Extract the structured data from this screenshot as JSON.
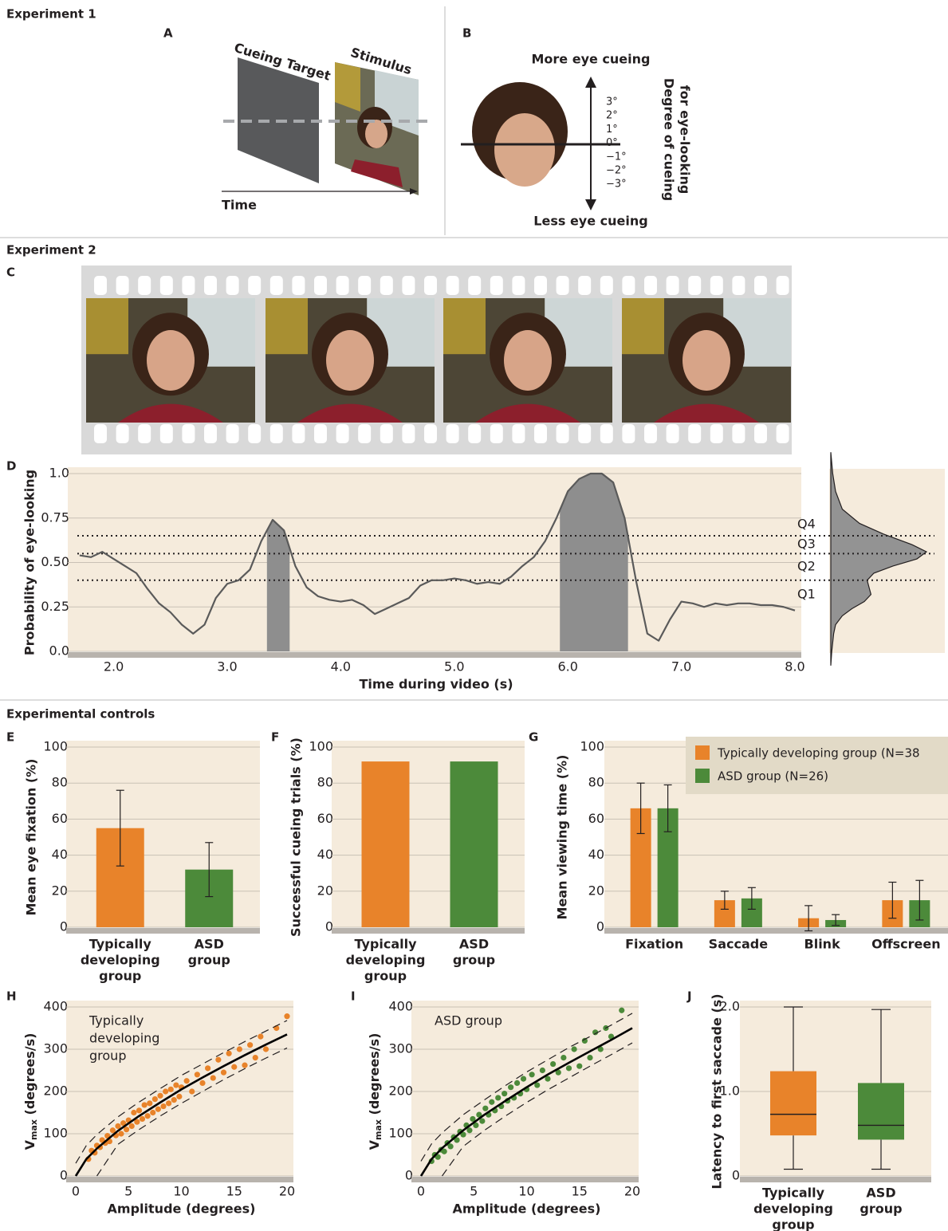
{
  "headings": [
    "Experiment 1",
    "Experiment 2",
    "Experimental controls"
  ],
  "panel_a": {
    "label": "A",
    "target": "Cueing Target",
    "stimulus": "Stimulus",
    "time": "Time"
  },
  "panel_b": {
    "label": "B",
    "top": "More eye cueing",
    "bottom": "Less eye cueing",
    "degrees": [
      "3°",
      "2°",
      "1°",
      "0°",
      "−1°",
      "−2°",
      "−3°"
    ],
    "axis_label": [
      "Degree of cueing",
      "for eye-looking"
    ]
  },
  "panel_c": {
    "label": "C"
  },
  "chart_data": [
    {
      "type": "line",
      "panel_label": "D",
      "ylabel": "Probability of eye-looking",
      "xlabel": "Time during video (s)",
      "xlim": [
        1.68,
        8.0
      ],
      "xticks": [
        {
          "value": 2,
          "label": "2.0"
        },
        {
          "value": 3,
          "label": "3.0"
        },
        {
          "value": 4,
          "label": "4.0"
        },
        {
          "value": 5,
          "label": "5.0"
        },
        {
          "value": 6,
          "label": "6.0"
        },
        {
          "value": 7,
          "label": "7.0"
        },
        {
          "value": 8,
          "label": "8.0"
        }
      ],
      "ylim": [
        0,
        1.0
      ],
      "yticks": [
        {
          "value": 0,
          "label": "0.0"
        },
        0.25,
        {
          "value": 0.5,
          "label": "0.50"
        },
        0.75,
        {
          "value": 1,
          "label": "1.0"
        }
      ],
      "grid": true,
      "color": "#5a5a5a",
      "highlight_color": "#8e8e8e",
      "x": [
        1.7,
        1.8,
        1.9,
        2.0,
        2.1,
        2.2,
        2.3,
        2.4,
        2.5,
        2.6,
        2.7,
        2.8,
        2.9,
        3.0,
        3.1,
        3.2,
        3.3,
        3.4,
        3.5,
        3.6,
        3.7,
        3.8,
        3.9,
        4.0,
        4.1,
        4.2,
        4.3,
        4.4,
        4.5,
        4.6,
        4.7,
        4.8,
        4.9,
        5.0,
        5.1,
        5.2,
        5.3,
        5.4,
        5.5,
        5.6,
        5.7,
        5.8,
        5.9,
        6.0,
        6.1,
        6.2,
        6.3,
        6.4,
        6.5,
        6.6,
        6.7,
        6.8,
        6.9,
        7.0,
        7.1,
        7.2,
        7.3,
        7.4,
        7.5,
        7.6,
        7.7,
        7.8,
        7.9,
        8.0
      ],
      "values": [
        0.54,
        0.53,
        0.56,
        0.52,
        0.48,
        0.44,
        0.35,
        0.27,
        0.22,
        0.15,
        0.1,
        0.15,
        0.3,
        0.38,
        0.4,
        0.46,
        0.62,
        0.74,
        0.68,
        0.48,
        0.36,
        0.31,
        0.29,
        0.28,
        0.29,
        0.26,
        0.21,
        0.24,
        0.27,
        0.3,
        0.37,
        0.4,
        0.4,
        0.41,
        0.4,
        0.38,
        0.39,
        0.38,
        0.42,
        0.48,
        0.53,
        0.62,
        0.75,
        0.9,
        0.97,
        1.0,
        1.0,
        0.95,
        0.75,
        0.4,
        0.1,
        0.06,
        0.18,
        0.28,
        0.27,
        0.25,
        0.27,
        0.26,
        0.27,
        0.27,
        0.26,
        0.26,
        0.25,
        0.23
      ],
      "highlights": [
        [
          3.35,
          3.55
        ],
        [
          5.93,
          6.53
        ]
      ],
      "quartile_lines": [
        0.4,
        0.55,
        0.65
      ],
      "quartile_labels": [
        "Q1",
        "Q2",
        "Q3",
        "Q4"
      ],
      "distribution": {
        "y": [
          1.12,
          1.0,
          0.9,
          0.8,
          0.72,
          0.66,
          0.6,
          0.56,
          0.52,
          0.48,
          0.44,
          0.4,
          0.36,
          0.32,
          0.28,
          0.24,
          0.2,
          0.15,
          0.1,
          0.0,
          -0.08
        ],
        "density": [
          0,
          0.02,
          0.05,
          0.12,
          0.3,
          0.55,
          0.85,
          1.0,
          0.9,
          0.65,
          0.45,
          0.38,
          0.4,
          0.42,
          0.35,
          0.22,
          0.12,
          0.05,
          0.03,
          0.01,
          0
        ]
      }
    },
    {
      "type": "bar",
      "panel_label": "E",
      "ylabel": "Mean eye fixation (%)",
      "categories": [
        [
          "Typically",
          "developing",
          "group"
        ],
        [
          "ASD",
          "group"
        ]
      ],
      "values": [
        55,
        32
      ],
      "errors": [
        21,
        15
      ],
      "colors": [
        "#e8832a",
        "#4c8a3a"
      ],
      "ylim": [
        0,
        100
      ],
      "yticks": [
        0,
        20,
        40,
        60,
        80,
        100
      ],
      "grid": true
    },
    {
      "type": "bar",
      "panel_label": "F",
      "ylabel": "Successful cueing trials (%)",
      "categories": [
        [
          "Typically",
          "developing",
          "group"
        ],
        [
          "ASD",
          "group"
        ]
      ],
      "values": [
        92,
        92
      ],
      "colors": [
        "#e8832a",
        "#4c8a3a"
      ],
      "ylim": [
        0,
        100
      ],
      "yticks": [
        0,
        20,
        40,
        60,
        80,
        100
      ],
      "grid": true
    },
    {
      "type": "grouped_bar",
      "panel_label": "G",
      "ylabel": "Mean viewing time (%)",
      "categories": [
        [
          "Fixation"
        ],
        [
          "Saccade"
        ],
        [
          "Blink"
        ],
        [
          "Offscreen"
        ]
      ],
      "series": [
        {
          "name": "Typically developing group (N=38",
          "color": "#e8832a",
          "values": [
            66,
            15,
            5,
            15
          ],
          "errors": [
            14,
            5,
            7,
            10
          ]
        },
        {
          "name": "ASD group (N=26)",
          "color": "#4c8a3a",
          "values": [
            66,
            16,
            4,
            15
          ],
          "errors": [
            13,
            6,
            3,
            11
          ]
        }
      ],
      "ylim": [
        0,
        100
      ],
      "yticks": [
        0,
        20,
        40,
        60,
        80,
        100
      ],
      "grid": true,
      "legend": "top-right"
    },
    {
      "type": "scatter",
      "panel_label": "H",
      "ylabel": {
        "main": "V",
        "sub": "max",
        "rest": " (degrees/s)"
      },
      "xlabel": "Amplitude (degrees)",
      "annotation": [
        "Typically",
        "developing",
        "group"
      ],
      "color": "#e8832a",
      "xlim": [
        0,
        20
      ],
      "xticks": [
        0,
        5,
        10,
        15,
        20
      ],
      "ylim": [
        0,
        400
      ],
      "yticks": [
        0,
        100,
        200,
        300,
        400
      ],
      "grid": true,
      "x": [
        1.2,
        1.5,
        1.8,
        2.0,
        2.3,
        2.5,
        2.8,
        3.0,
        3.2,
        3.5,
        3.8,
        4.0,
        4.3,
        4.5,
        4.8,
        5.0,
        5.3,
        5.5,
        5.8,
        6.0,
        6.3,
        6.5,
        6.8,
        7.0,
        7.3,
        7.5,
        7.8,
        8.0,
        8.3,
        8.5,
        8.8,
        9.0,
        9.3,
        9.5,
        9.8,
        10.0,
        10.5,
        11.0,
        11.5,
        12.0,
        12.5,
        13.0,
        13.5,
        14.0,
        14.5,
        15.0,
        15.5,
        16.0,
        16.5,
        17.0,
        17.5,
        18.0,
        19.0,
        20.0
      ],
      "values": [
        40,
        60,
        55,
        72,
        68,
        85,
        78,
        95,
        82,
        108,
        96,
        118,
        100,
        125,
        110,
        132,
        118,
        150,
        128,
        155,
        135,
        168,
        142,
        172,
        150,
        182,
        158,
        190,
        165,
        200,
        172,
        205,
        180,
        215,
        188,
        210,
        225,
        200,
        240,
        220,
        255,
        232,
        275,
        245,
        290,
        258,
        300,
        262,
        310,
        280,
        330,
        300,
        350,
        378
      ],
      "fit": {
        "x": [
          0,
          1,
          2,
          4,
          6,
          8,
          10,
          12,
          14,
          16,
          18,
          20
        ],
        "values": [
          0,
          40,
          65,
          107,
          142,
          174,
          205,
          233,
          260,
          286,
          311,
          335
        ]
      },
      "bounds": [
        {
          "x": [
            0,
            1,
            2,
            4,
            6,
            8,
            10,
            12,
            14,
            16,
            18,
            20
          ],
          "values": [
            30,
            72,
            98,
            140,
            175,
            207,
            238,
            265,
            292,
            318,
            343,
            368
          ]
        },
        {
          "x": [
            2,
            4,
            6,
            8,
            10,
            12,
            14,
            16,
            18,
            20
          ],
          "values": [
            0,
            75,
            110,
            142,
            172,
            200,
            228,
            254,
            279,
            303
          ]
        }
      ]
    },
    {
      "type": "scatter",
      "panel_label": "I",
      "ylabel": {
        "main": "V",
        "sub": "max",
        "rest": " (degrees/s)"
      },
      "xlabel": "Amplitude (degrees)",
      "annotation": [
        "ASD group"
      ],
      "color": "#4c8a3a",
      "xlim": [
        0,
        20
      ],
      "xticks": [
        0,
        5,
        10,
        15,
        20
      ],
      "ylim": [
        0,
        400
      ],
      "yticks": [
        0,
        100,
        200,
        300,
        400
      ],
      "grid": true,
      "x": [
        1.0,
        1.3,
        1.6,
        1.9,
        2.2,
        2.5,
        2.8,
        3.1,
        3.4,
        3.7,
        4.0,
        4.3,
        4.6,
        4.9,
        5.2,
        5.5,
        5.8,
        6.1,
        6.4,
        6.7,
        7.0,
        7.3,
        7.6,
        7.9,
        8.2,
        8.5,
        8.8,
        9.1,
        9.4,
        9.7,
        10.0,
        10.5,
        11.0,
        11.5,
        12.0,
        12.5,
        13.0,
        13.5,
        14.0,
        14.5,
        15.0,
        15.5,
        16.0,
        16.5,
        17.0,
        17.5,
        18.0,
        19.0
      ],
      "values": [
        35,
        50,
        45,
        62,
        58,
        78,
        70,
        92,
        85,
        105,
        98,
        120,
        108,
        135,
        120,
        145,
        130,
        160,
        145,
        175,
        155,
        185,
        165,
        195,
        178,
        210,
        185,
        220,
        195,
        230,
        205,
        240,
        215,
        250,
        230,
        265,
        245,
        280,
        255,
        300,
        260,
        320,
        280,
        340,
        300,
        350,
        330,
        392
      ],
      "fit": {
        "x": [
          0,
          1,
          2,
          4,
          6,
          8,
          10,
          12,
          14,
          16,
          18,
          20
        ],
        "values": [
          0,
          40,
          66,
          108,
          145,
          178,
          210,
          240,
          268,
          295,
          322,
          350
        ]
      },
      "bounds": [
        {
          "x": [
            0,
            1,
            2,
            4,
            6,
            8,
            10,
            12,
            14,
            16,
            18,
            20
          ],
          "values": [
            35,
            76,
            102,
            145,
            180,
            214,
            246,
            275,
            304,
            330,
            357,
            385
          ]
        },
        {
          "x": [
            2,
            4,
            6,
            8,
            10,
            12,
            14,
            16,
            18,
            20
          ],
          "values": [
            0,
            70,
            108,
            142,
            174,
            204,
            232,
            260,
            287,
            315
          ]
        }
      ]
    },
    {
      "type": "box",
      "panel_label": "J",
      "ylabel": "Latency to first saccade (s)",
      "categories": [
        [
          "Typically",
          "developing",
          "group"
        ],
        [
          "ASD",
          "group"
        ]
      ],
      "ylim": [
        0,
        2.0
      ],
      "yticks": [
        0,
        {
          "value": 1,
          "label": "1.0"
        },
        {
          "value": 2,
          "label": "2.0"
        }
      ],
      "grid": true,
      "boxes": [
        {
          "min": 0.08,
          "q1": 0.48,
          "median": 0.73,
          "q3": 1.24,
          "max": 2.0,
          "color": "#e8832a"
        },
        {
          "min": 0.08,
          "q1": 0.43,
          "median": 0.6,
          "q3": 1.1,
          "max": 1.97,
          "color": "#4c8a3a"
        }
      ]
    }
  ]
}
